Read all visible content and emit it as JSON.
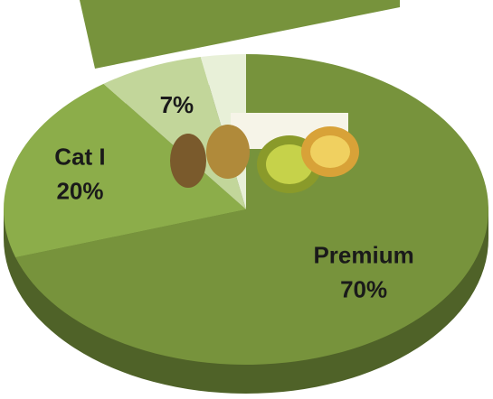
{
  "chart_data": {
    "type": "pie",
    "categories": [
      "Premium",
      "Cat I",
      null,
      null
    ],
    "values": [
      70,
      20,
      7,
      3
    ],
    "value_labels": [
      "70%",
      "20%",
      "7%",
      null
    ],
    "colors": [
      "#77933c",
      "#8cad4a",
      "#c2d69a",
      "#e8f0d8"
    ],
    "start_angle": -90
  }
}
